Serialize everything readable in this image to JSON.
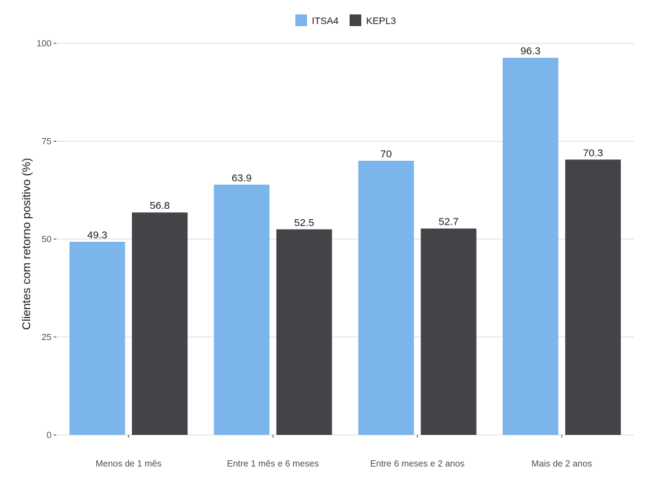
{
  "chart_data": {
    "type": "bar",
    "title": "",
    "xlabel": "",
    "ylabel": "Clientes com retorno positivo (%)",
    "categories": [
      "Menos de 1 mês",
      "Entre 1 mês e 6 meses",
      "Entre 6 meses e 2 anos",
      "Mais de 2 anos"
    ],
    "series": [
      {
        "name": "ITSA4",
        "color": "#7cb5ec",
        "values": [
          49.3,
          63.9,
          70,
          96.3
        ],
        "labels": [
          "49.3",
          "63.9",
          "70",
          "96.3"
        ]
      },
      {
        "name": "KEPL3",
        "color": "#434348",
        "values": [
          56.8,
          52.5,
          52.7,
          70.3
        ],
        "labels": [
          "56.8",
          "52.5",
          "52.7",
          "70.3"
        ]
      }
    ],
    "yticks": [
      0,
      25,
      50,
      75,
      100
    ],
    "ylim": [
      0,
      100
    ],
    "grid": true,
    "legend_position": "top"
  }
}
